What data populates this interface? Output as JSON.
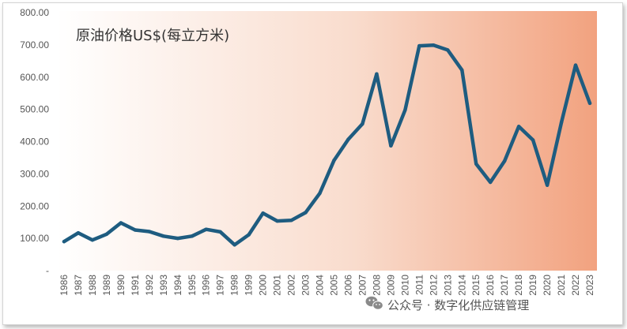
{
  "chart_data": {
    "type": "line",
    "title": "原油价格US$(每立方米)",
    "xlabel": "",
    "ylabel": "",
    "ylim": [
      0,
      800
    ],
    "yticks": [
      "-",
      "100.00",
      "200.00",
      "300.00",
      "400.00",
      "500.00",
      "600.00",
      "700.00",
      "800.00"
    ],
    "categories": [
      "1986",
      "1987",
      "1988",
      "1989",
      "1990",
      "1991",
      "1992",
      "1993",
      "1994",
      "1995",
      "1996",
      "1997",
      "1998",
      "1999",
      "2000",
      "2001",
      "2002",
      "2003",
      "2004",
      "2005",
      "2006",
      "2007",
      "2008",
      "2009",
      "2010",
      "2011",
      "2012",
      "2013",
      "2014",
      "2015",
      "2016",
      "2017",
      "2018",
      "2019",
      "2020",
      "2021",
      "2022",
      "2023"
    ],
    "series": [
      {
        "values": [
          90,
          117,
          95,
          113,
          148,
          126,
          121,
          107,
          100,
          107,
          128,
          120,
          80,
          111,
          178,
          154,
          156,
          180,
          240,
          342,
          407,
          455,
          610,
          387,
          498,
          697,
          699,
          684,
          622,
          331,
          274,
          340,
          447,
          405,
          265,
          460,
          637,
          519
        ],
        "color": "#1e5c80"
      }
    ],
    "grid": false,
    "legend": "none",
    "background_gradient": [
      "#ffffff",
      "#f2a27f"
    ]
  },
  "watermark": {
    "text": "公众号 · 数字化供应链管理",
    "icon": "wechat-icon"
  }
}
